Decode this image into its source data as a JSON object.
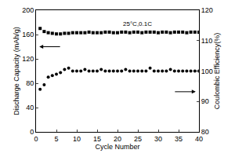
{
  "chart_data": {
    "type": "scatter",
    "annotations": [
      "25°C,0.1C"
    ],
    "x_label": "Cycle Number",
    "y_label": "Discharge Capacity (mAh/g)",
    "y2_label": "Coulombic Efficiency(%)",
    "x": [
      1,
      2,
      3,
      4,
      5,
      6,
      7,
      8,
      9,
      10,
      11,
      12,
      13,
      14,
      15,
      16,
      17,
      18,
      19,
      20,
      21,
      22,
      23,
      24,
      25,
      26,
      27,
      28,
      29,
      30,
      31,
      32,
      33,
      34,
      35,
      36,
      37,
      38,
      39,
      40
    ],
    "series": [
      {
        "color": "#000000",
        "marker": "square",
        "values": [
          170,
          165,
          163,
          162,
          161,
          161,
          162,
          162,
          163,
          163,
          163,
          163,
          164,
          163,
          163,
          163,
          164,
          164,
          163,
          163,
          164,
          164,
          163,
          164,
          164,
          163,
          164,
          164,
          164,
          163,
          164,
          164,
          163,
          164,
          164,
          164,
          163,
          164,
          164,
          164
        ]
      },
      {
        "color": "#000000",
        "marker": "circle",
        "axis": "y2",
        "values": [
          94,
          95.5,
          98,
          98.5,
          99,
          99.5,
          100.5,
          101,
          100,
          100,
          100,
          100.5,
          100,
          100,
          100,
          100.5,
          100,
          100,
          100,
          100,
          100,
          100.5,
          100,
          100,
          100,
          100,
          100,
          101,
          100,
          100,
          100,
          100,
          100.5,
          100,
          100,
          100,
          100,
          100,
          100,
          100
        ]
      }
    ],
    "xlim": [
      0,
      40
    ],
    "xticks": [
      0,
      5,
      10,
      15,
      20,
      25,
      30,
      35,
      40
    ],
    "ylim": [
      0,
      200
    ],
    "yticks": [
      0,
      40,
      80,
      120,
      160,
      200
    ],
    "y2lim": [
      80,
      120
    ],
    "y2ticks": [
      80,
      90,
      100,
      110,
      120
    ],
    "grid": false
  }
}
